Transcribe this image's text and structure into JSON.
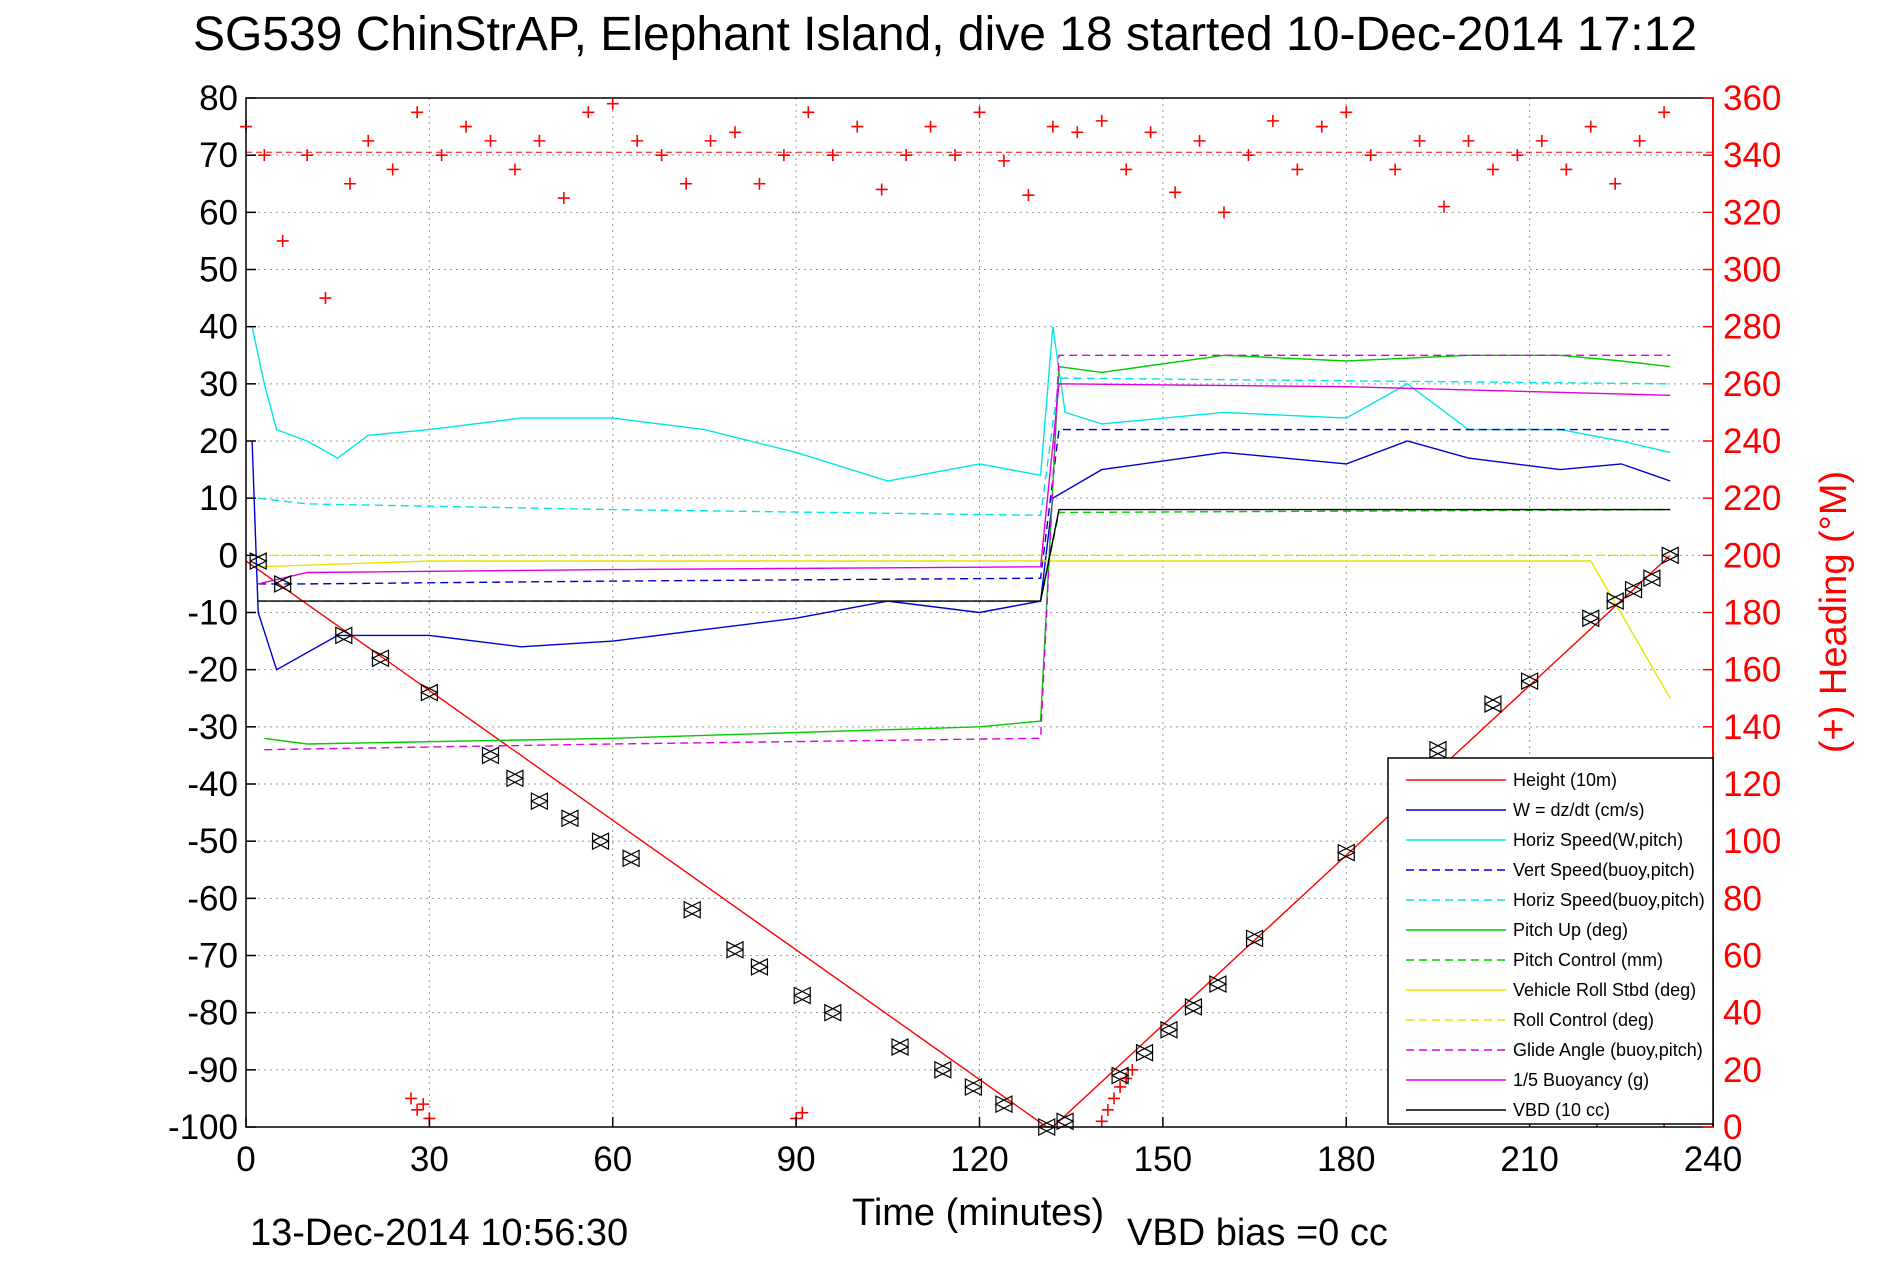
{
  "chart_data": {
    "type": "line",
    "title": "SG539 ChinStrAP, Elephant Island, dive 18 started 10-Dec-2014 17:12",
    "xlabel": "Time (minutes)",
    "ylabel_right": "(+) Heading (°M)",
    "footer_left": "13-Dec-2014 10:56:30",
    "footer_right": "VBD bias =0 cc",
    "xlim": [
      0,
      240
    ],
    "ylim": [
      -100,
      80
    ],
    "ylim_right": [
      0,
      360
    ],
    "x_ticks": [
      "0",
      "30",
      "60",
      "90",
      "120",
      "150",
      "180",
      "210",
      "240"
    ],
    "y_ticks": [
      "80",
      "70",
      "60",
      "50",
      "40",
      "30",
      "20",
      "10",
      "0",
      "-10",
      "-20",
      "-30",
      "-40",
      "-50",
      "-60",
      "-70",
      "-80",
      "-90",
      "-100"
    ],
    "y_right_ticks": [
      "360",
      "340",
      "320",
      "300",
      "280",
      "260",
      "240",
      "220",
      "200",
      "180",
      "160",
      "140",
      "120",
      "100",
      "80",
      "60",
      "40",
      "20",
      "0"
    ],
    "grid": true,
    "legend_position": "bottom-right",
    "series": [
      {
        "name": "Height (10m)",
        "color": "#ff0000",
        "style": "solid",
        "x": [
          0,
          131,
          132,
          233
        ],
        "y": [
          -1,
          -100,
          -100,
          0
        ]
      },
      {
        "name": "W = dz/dt (cm/s)",
        "color": "#0000cc",
        "style": "solid",
        "x": [
          1,
          2,
          5,
          15,
          30,
          45,
          60,
          75,
          90,
          105,
          120,
          130,
          132,
          140,
          160,
          180,
          190,
          200,
          215,
          225,
          233
        ],
        "y": [
          20,
          -10,
          -20,
          -14,
          -14,
          -16,
          -15,
          -13,
          -11,
          -8,
          -10,
          -8,
          10,
          15,
          18,
          16,
          20,
          17,
          15,
          16,
          13
        ]
      },
      {
        "name": "Horiz Speed(W,pitch)",
        "color": "#00e5e5",
        "style": "solid",
        "x": [
          1,
          3,
          5,
          10,
          15,
          20,
          30,
          45,
          60,
          75,
          90,
          105,
          120,
          130,
          132,
          134,
          140,
          160,
          180,
          190,
          200,
          215,
          225,
          233
        ],
        "y": [
          40,
          30,
          22,
          20,
          17,
          21,
          22,
          24,
          24,
          22,
          18,
          13,
          16,
          14,
          40,
          25,
          23,
          25,
          24,
          30,
          22,
          22,
          20,
          18
        ]
      },
      {
        "name": "Vert Speed(buoy,pitch)",
        "color": "#0000cc",
        "style": "dashed",
        "x": [
          2,
          10,
          60,
          130,
          133,
          233
        ],
        "y": [
          -5,
          -5,
          -4.5,
          -4,
          22,
          22
        ]
      },
      {
        "name": "Horiz Speed(buoy,pitch)",
        "color": "#00e5e5",
        "style": "dashed",
        "x": [
          2,
          10,
          60,
          130,
          133,
          233
        ],
        "y": [
          10,
          9,
          8,
          7,
          31,
          30
        ]
      },
      {
        "name": "Pitch Up (deg)",
        "color": "#00cc00",
        "style": "solid",
        "x": [
          3,
          10,
          60,
          120,
          130,
          133,
          140,
          160,
          180,
          200,
          215,
          225,
          233
        ],
        "y": [
          -32,
          -33,
          -32,
          -30,
          -29,
          33,
          32,
          35,
          34,
          35,
          35,
          34,
          33
        ]
      },
      {
        "name": "Pitch Control (mm)",
        "color": "#00cc00",
        "style": "dashed",
        "x": [
          2,
          130,
          133,
          233
        ],
        "y": [
          -8,
          -8,
          7.5,
          8
        ]
      },
      {
        "name": "Vehicle Roll Stbd (deg)",
        "color": "#e5e500",
        "style": "solid",
        "x": [
          2,
          30,
          60,
          90,
          130,
          132,
          160,
          190,
          220,
          233
        ],
        "y": [
          -2,
          -1,
          -1,
          -1,
          -1,
          -1,
          -1,
          -1,
          -1,
          -25
        ]
      },
      {
        "name": "Roll Control (deg)",
        "color": "#e5e500",
        "style": "dashed",
        "x": [
          2,
          130,
          132,
          233
        ],
        "y": [
          0,
          0,
          0,
          0
        ]
      },
      {
        "name": "Glide Angle (buoy,pitch)",
        "color": "#e000e0",
        "style": "dashed",
        "x": [
          3,
          60,
          130,
          133,
          180,
          233
        ],
        "y": [
          -34,
          -33,
          -32,
          35,
          35,
          35
        ]
      },
      {
        "name": "1/5 Buoyancy (g)",
        "color": "#e000e0",
        "style": "solid",
        "x": [
          2,
          10,
          60,
          130,
          133,
          180,
          233
        ],
        "y": [
          -5,
          -3,
          -2.5,
          -2,
          30,
          29.5,
          28
        ]
      },
      {
        "name": "VBD (10 cc)",
        "color": "#000000",
        "style": "solid",
        "x": [
          2,
          130,
          133,
          233
        ],
        "y": [
          -8,
          -8,
          8,
          8
        ]
      }
    ],
    "heading": {
      "name": "(+) Heading",
      "color": "#ff0000",
      "marker": "+",
      "mean": 341,
      "x": [
        0,
        3,
        6,
        10,
        13,
        17,
        20,
        24,
        28,
        32,
        36,
        40,
        44,
        48,
        52,
        56,
        60,
        64,
        68,
        72,
        76,
        80,
        84,
        88,
        92,
        96,
        100,
        104,
        108,
        112,
        116,
        120,
        124,
        128,
        132,
        136,
        140,
        144,
        148,
        152,
        156,
        160,
        164,
        168,
        172,
        176,
        180,
        184,
        188,
        192,
        196,
        200,
        204,
        208,
        212,
        216,
        220,
        224,
        228,
        232
      ],
      "y": [
        350,
        340,
        310,
        340,
        290,
        330,
        345,
        335,
        355,
        340,
        350,
        345,
        335,
        345,
        325,
        355,
        358,
        345,
        340,
        330,
        345,
        348,
        330,
        340,
        355,
        340,
        350,
        328,
        340,
        350,
        340,
        355,
        338,
        326,
        350,
        348,
        352,
        335,
        348,
        327,
        345,
        320,
        340,
        352,
        335,
        350,
        355,
        340,
        335,
        345,
        322,
        345,
        335,
        340,
        345,
        335,
        350,
        330,
        345,
        355
      ]
    },
    "heading_low_clusters": [
      {
        "x": [
          27,
          28,
          29,
          30
        ],
        "y": [
          10,
          6,
          8,
          3
        ]
      },
      {
        "x": [
          90,
          91
        ],
        "y": [
          3,
          5
        ]
      },
      {
        "x": [
          140,
          141,
          142,
          143,
          144,
          145
        ],
        "y": [
          2,
          6,
          10,
          14,
          17,
          20
        ]
      },
      {
        "x": [
          221,
          232
        ],
        "y": [
          2,
          2
        ]
      }
    ],
    "apogee_markers": {
      "x": [
        2,
        6,
        16,
        22,
        30,
        40,
        44,
        48,
        53,
        58,
        63,
        73,
        80,
        84,
        91,
        96,
        107,
        114,
        119,
        124,
        131,
        134,
        143,
        147,
        151,
        155,
        159,
        165,
        180,
        195,
        204,
        210,
        220,
        224,
        227,
        230,
        233
      ],
      "y": [
        -1,
        -5,
        -14,
        -18,
        -24,
        -35,
        -39,
        -43,
        -46,
        -50,
        -53,
        -62,
        -69,
        -72,
        -77,
        -80,
        -86,
        -90,
        -93,
        -96,
        -100,
        -99,
        -91,
        -87,
        -83,
        -79,
        -75,
        -67,
        -52,
        -34,
        -26,
        -22,
        -11,
        -8,
        -6,
        -4,
        0
      ]
    }
  }
}
